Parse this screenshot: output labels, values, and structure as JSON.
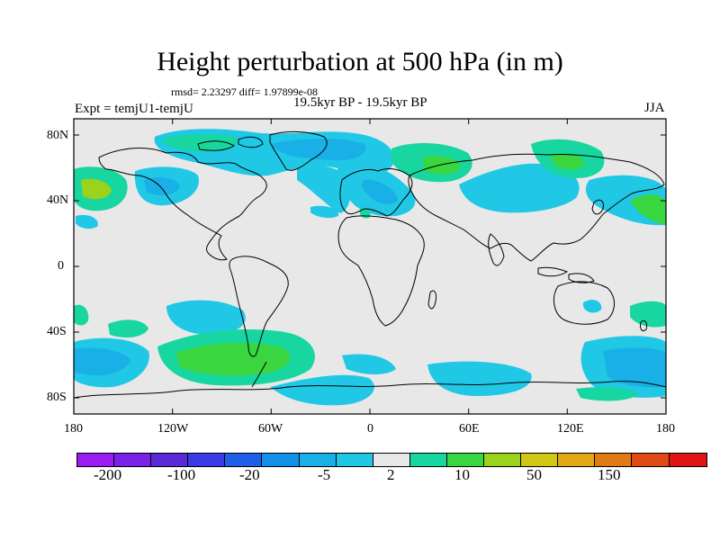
{
  "title": "Height perturbation at 500 hPa (in m)",
  "stats": "rmsd= 2.23297 diff= 1.97899e-08",
  "period": "19.5kyr BP - 19.5kyr BP",
  "experiment": "Expt = temjU1-temjU",
  "season": "JJA",
  "lat_labels": [
    "80N",
    "40N",
    "0",
    "40S",
    "80S"
  ],
  "lon_labels": [
    "180",
    "120W",
    "60W",
    "0",
    "60E",
    "120E",
    "180"
  ],
  "colorbar": {
    "colors": [
      "#9a1cf0",
      "#7a22e8",
      "#5a2ad8",
      "#3a3ae6",
      "#1e5ee8",
      "#1290e8",
      "#18b0e6",
      "#20c8e6",
      "#e8e8e8",
      "#18d6a0",
      "#3ad640",
      "#9ad21c",
      "#d0c814",
      "#e0a814",
      "#e07a14",
      "#e04a14",
      "#e01414"
    ],
    "labels": [
      "-200",
      "-100",
      "-20",
      "-5",
      "2",
      "10",
      "50",
      "150"
    ],
    "colors_note_background": "#e8e8e8"
  }
}
